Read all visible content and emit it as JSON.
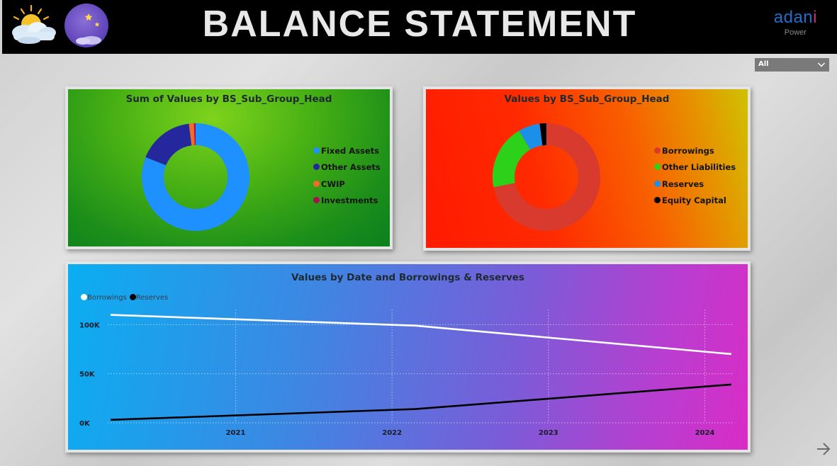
{
  "header": {
    "title": "BALANCE STATEMENT",
    "logo_prefix": "adan",
    "logo_accent": "i",
    "logo_sub": "Power"
  },
  "slicer": {
    "selected": "All"
  },
  "colors": {
    "fixed_assets": "#1e90ff",
    "other_assets": "#24289c",
    "cwip": "#f26a2e",
    "investments": "#a3144f",
    "borrowings": "#d93a2e",
    "other_liabilities": "#2ed11a",
    "reserves": "#1c8fe8",
    "equity_capital": "#000000",
    "line_borrowings": "#ffffff",
    "line_reserves": "#000000"
  },
  "chart_data": [
    {
      "type": "pie",
      "title": "Sum of Values by BS_Sub_Group_Head",
      "categories": [
        "Fixed Assets",
        "Other Assets",
        "CWIP",
        "Investments"
      ],
      "values": [
        81,
        17,
        1.5,
        0.5
      ],
      "donut": true,
      "legend": "right"
    },
    {
      "type": "pie",
      "title": "Values by BS_Sub_Group_Head",
      "categories": [
        "Borrowings",
        "Other Liabilities",
        "Reserves",
        "Equity Capital"
      ],
      "values": [
        72,
        19.5,
        6.5,
        2
      ],
      "donut": true,
      "legend": "right"
    },
    {
      "type": "line",
      "title": "Values by Date and Borrowings & Reserves",
      "x": [
        2020.2,
        2022.15,
        2024.17
      ],
      "x_ticks": [
        "2021",
        "2022",
        "2023",
        "2024"
      ],
      "x_tick_values": [
        2021,
        2022,
        2023,
        2024
      ],
      "x_range": [
        2020.2,
        2024.17
      ],
      "y_ticks": [
        "0K",
        "50K",
        "100K"
      ],
      "y_tick_values": [
        0,
        50000,
        100000
      ],
      "ylim": [
        0,
        110000
      ],
      "series": [
        {
          "name": "Borrowings",
          "values": [
            110000,
            99000,
            70000
          ]
        },
        {
          "name": "Reserves",
          "values": [
            3000,
            14000,
            39000
          ]
        }
      ],
      "grid": true,
      "legend": "top-left"
    }
  ]
}
